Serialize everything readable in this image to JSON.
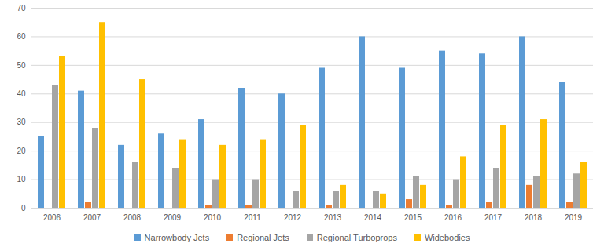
{
  "chart_data": {
    "type": "bar",
    "categories": [
      "2006",
      "2007",
      "2008",
      "2009",
      "2010",
      "2011",
      "2012",
      "2013",
      "2014",
      "2015",
      "2016",
      "2017",
      "2018",
      "2019"
    ],
    "series": [
      {
        "name": "Narrowbody Jets",
        "color": "#5b9bd5",
        "values": [
          25,
          41,
          22,
          26,
          31,
          42,
          40,
          49,
          60,
          49,
          55,
          54,
          60,
          44
        ]
      },
      {
        "name": "Regional Jets",
        "color": "#ed7d31",
        "values": [
          0,
          2,
          0,
          0,
          1,
          1,
          0,
          1,
          0,
          3,
          1,
          2,
          8,
          2
        ]
      },
      {
        "name": "Regional Turboprops",
        "color": "#a5a5a5",
        "values": [
          43,
          28,
          16,
          14,
          10,
          10,
          6,
          6,
          6,
          11,
          10,
          14,
          11,
          12
        ]
      },
      {
        "name": "Widebodies",
        "color": "#ffc000",
        "values": [
          53,
          65,
          45,
          24,
          22,
          24,
          29,
          8,
          5,
          8,
          18,
          29,
          31,
          16
        ]
      }
    ],
    "ylim": [
      0,
      70
    ],
    "yticks": [
      0,
      10,
      20,
      30,
      40,
      50,
      60,
      70
    ],
    "grid": true,
    "legend": "bottom"
  }
}
